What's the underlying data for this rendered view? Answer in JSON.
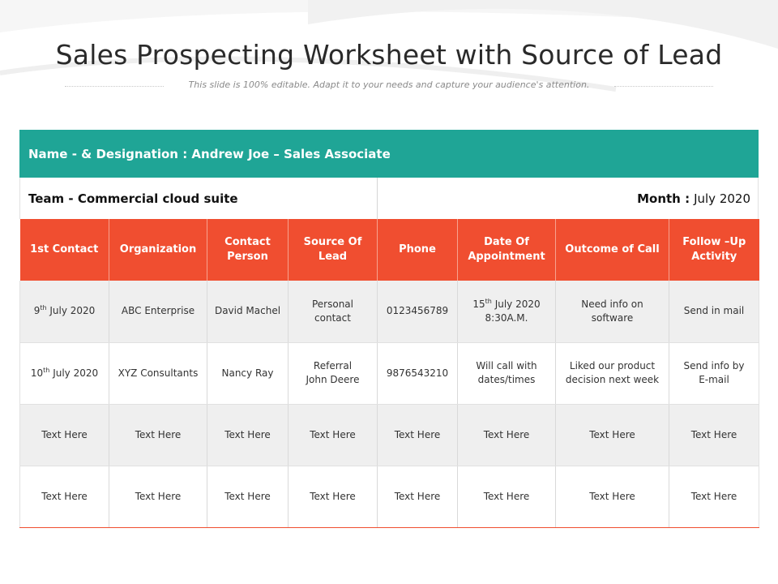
{
  "title": "Sales Prospecting Worksheet with Source of Lead",
  "subtitle": "This slide is 100% editable. Adapt it to your needs and capture your audience's attention.",
  "sheet": {
    "name_designation": "Name - & Designation : Andrew Joe – Sales Associate",
    "team": "Team - Commercial cloud suite",
    "month_label": "Month :",
    "month_value": "July 2020",
    "colors": {
      "teal": "#1fa596",
      "orange": "#f04e30"
    },
    "columns": [
      [
        "1st Contact"
      ],
      [
        "Organization"
      ],
      [
        "Contact",
        "Person"
      ],
      [
        "Source Of",
        "Lead"
      ],
      [
        "Phone"
      ],
      [
        "Date Of",
        "Appointment"
      ],
      [
        "Outcome of Call"
      ],
      [
        "Follow –Up",
        "Activity"
      ]
    ],
    "rows": [
      {
        "shade": true,
        "cells": [
          [
            {
              "t": "9"
            },
            {
              "sup": "th"
            },
            {
              "t": " July 2020"
            }
          ],
          [
            {
              "t": "ABC Enterprise"
            }
          ],
          [
            {
              "t": "David Machel"
            }
          ],
          [
            {
              "t": "Personal"
            },
            {
              "br": true
            },
            {
              "t": "contact"
            }
          ],
          [
            {
              "t": "0123456789"
            }
          ],
          [
            {
              "t": "15"
            },
            {
              "sup": "th"
            },
            {
              "t": " July 2020"
            },
            {
              "br": true
            },
            {
              "t": "8:30A.M."
            }
          ],
          [
            {
              "t": "Need info on"
            },
            {
              "br": true
            },
            {
              "t": "software"
            }
          ],
          [
            {
              "t": "Send in mail"
            }
          ]
        ]
      },
      {
        "shade": false,
        "cells": [
          [
            {
              "t": "10"
            },
            {
              "sup": "th"
            },
            {
              "t": " July 2020"
            }
          ],
          [
            {
              "t": "XYZ Consultants"
            }
          ],
          [
            {
              "t": "Nancy Ray"
            }
          ],
          [
            {
              "t": "Referral"
            },
            {
              "br": true
            },
            {
              "t": "John Deere"
            }
          ],
          [
            {
              "t": "9876543210"
            }
          ],
          [
            {
              "t": "Will call with"
            },
            {
              "br": true
            },
            {
              "t": "dates/times"
            }
          ],
          [
            {
              "t": "Liked our product"
            },
            {
              "br": true
            },
            {
              "t": "decision next week"
            }
          ],
          [
            {
              "t": "Send info by"
            },
            {
              "br": true
            },
            {
              "t": "E-mail"
            }
          ]
        ]
      },
      {
        "shade": true,
        "cells": [
          [
            {
              "t": "Text Here"
            }
          ],
          [
            {
              "t": "Text Here"
            }
          ],
          [
            {
              "t": "Text Here"
            }
          ],
          [
            {
              "t": "Text Here"
            }
          ],
          [
            {
              "t": "Text Here"
            }
          ],
          [
            {
              "t": "Text Here"
            }
          ],
          [
            {
              "t": "Text Here"
            }
          ],
          [
            {
              "t": "Text Here"
            }
          ]
        ]
      },
      {
        "shade": false,
        "cells": [
          [
            {
              "t": "Text Here"
            }
          ],
          [
            {
              "t": "Text Here"
            }
          ],
          [
            {
              "t": "Text Here"
            }
          ],
          [
            {
              "t": "Text Here"
            }
          ],
          [
            {
              "t": "Text Here"
            }
          ],
          [
            {
              "t": "Text Here"
            }
          ],
          [
            {
              "t": "Text Here"
            }
          ],
          [
            {
              "t": "Text Here"
            }
          ]
        ]
      }
    ]
  }
}
